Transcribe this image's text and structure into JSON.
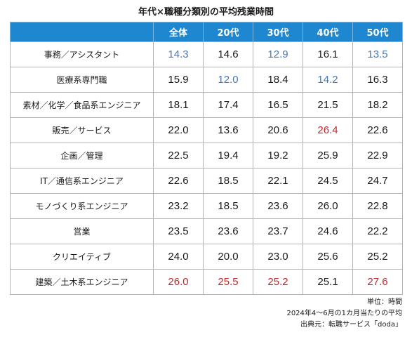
{
  "title": "年代×職種分類別の平均残業時間",
  "columns": [
    "全体",
    "20代",
    "30代",
    "40代",
    "50代"
  ],
  "rows": [
    {
      "label": "事務／アシスタント",
      "values": [
        "14.3",
        "14.6",
        "12.9",
        "16.1",
        "13.5"
      ],
      "styles": [
        "low",
        "normal",
        "low",
        "normal",
        "low"
      ]
    },
    {
      "label": "医療系専門職",
      "values": [
        "15.9",
        "12.0",
        "18.4",
        "14.2",
        "16.3"
      ],
      "styles": [
        "normal",
        "low",
        "normal",
        "low",
        "normal"
      ]
    },
    {
      "label": "素材／化学／食品系エンジニア",
      "values": [
        "18.1",
        "17.4",
        "16.5",
        "21.5",
        "18.2"
      ],
      "styles": [
        "normal",
        "normal",
        "normal",
        "normal",
        "normal"
      ]
    },
    {
      "label": "販売／サービス",
      "values": [
        "22.0",
        "13.6",
        "20.6",
        "26.4",
        "22.6"
      ],
      "styles": [
        "normal",
        "normal",
        "normal",
        "high",
        "normal"
      ]
    },
    {
      "label": "企画／管理",
      "values": [
        "22.5",
        "19.4",
        "19.2",
        "25.9",
        "22.9"
      ],
      "styles": [
        "normal",
        "normal",
        "normal",
        "normal",
        "normal"
      ]
    },
    {
      "label": "IT／通信系エンジニア",
      "values": [
        "22.6",
        "18.5",
        "22.1",
        "24.5",
        "24.7"
      ],
      "styles": [
        "normal",
        "normal",
        "normal",
        "normal",
        "normal"
      ]
    },
    {
      "label": "モノづくり系エンジニア",
      "values": [
        "23.2",
        "18.5",
        "23.6",
        "26.0",
        "22.8"
      ],
      "styles": [
        "normal",
        "normal",
        "normal",
        "normal",
        "normal"
      ]
    },
    {
      "label": "営業",
      "values": [
        "23.5",
        "23.6",
        "23.7",
        "24.6",
        "22.2"
      ],
      "styles": [
        "normal",
        "normal",
        "normal",
        "normal",
        "normal"
      ]
    },
    {
      "label": "クリエイティブ",
      "values": [
        "24.0",
        "20.0",
        "23.0",
        "25.6",
        "25.2"
      ],
      "styles": [
        "normal",
        "normal",
        "normal",
        "normal",
        "normal"
      ]
    },
    {
      "label": "建築／土木系エンジニア",
      "values": [
        "26.0",
        "25.5",
        "25.2",
        "25.1",
        "27.6"
      ],
      "styles": [
        "high",
        "high",
        "high",
        "normal",
        "high"
      ]
    }
  ],
  "colors": {
    "header_bg": "#1f86d0",
    "low": "#4a78b3",
    "high": "#c0282d"
  },
  "notes": {
    "unit": "単位：時間",
    "period": "2024年4～6月の1カ月当たりの平均",
    "source": "出典元：転職サービス「doda」"
  }
}
